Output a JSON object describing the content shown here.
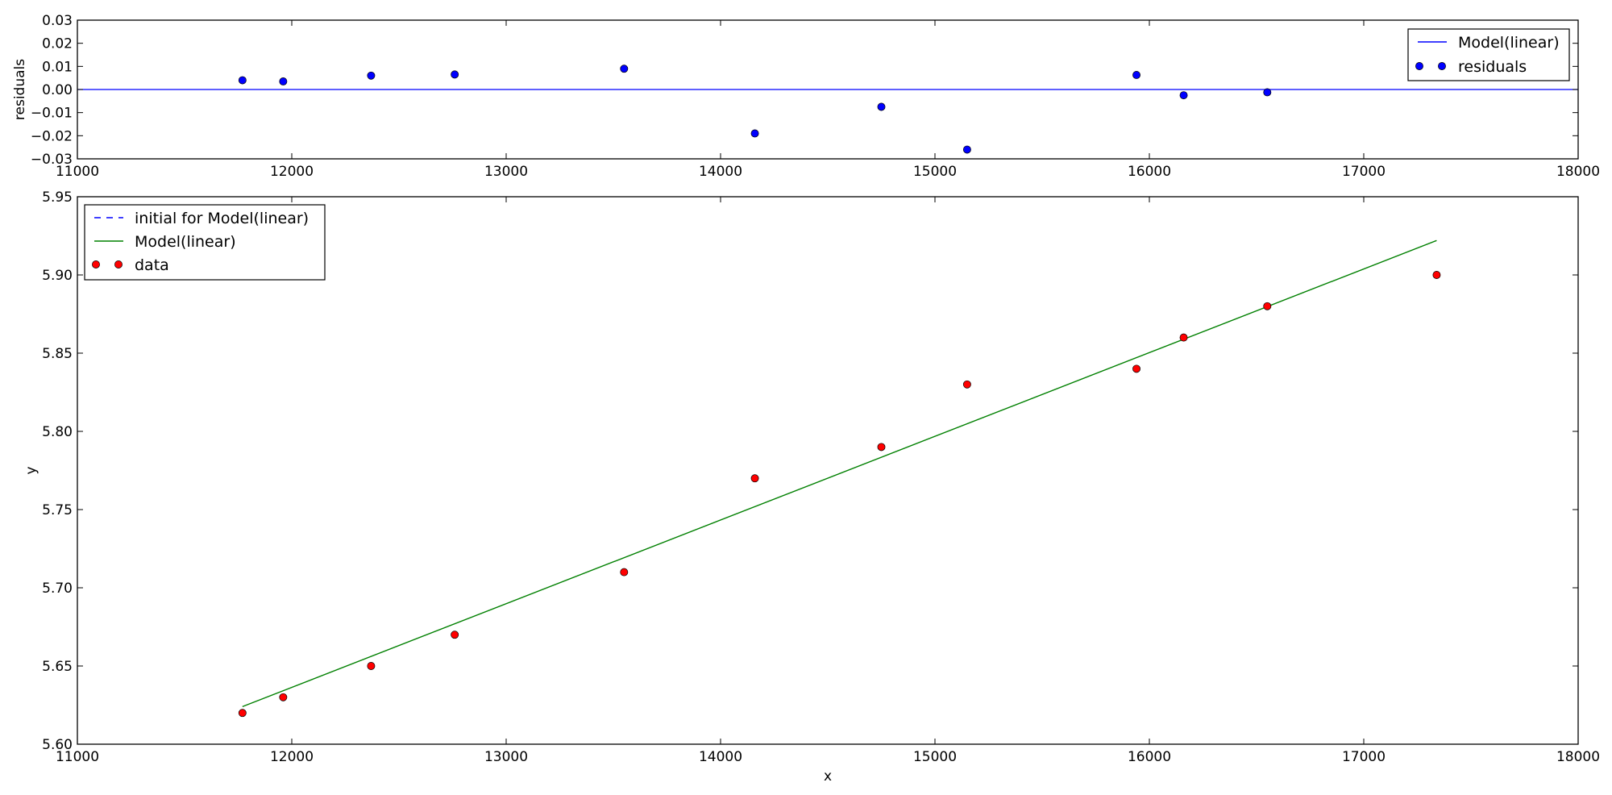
{
  "chart_data": [
    {
      "id": "residuals",
      "type": "scatter",
      "title": "",
      "xlabel": "",
      "ylabel": "residuals",
      "xlim": [
        11000,
        18000
      ],
      "ylim": [
        -0.03,
        0.03
      ],
      "xticks": [
        11000,
        12000,
        13000,
        14000,
        15000,
        16000,
        17000,
        18000
      ],
      "yticks": [
        0.03,
        0.02,
        0.01,
        0.0,
        -0.01,
        -0.02,
        -0.03
      ],
      "xtick_labels": [
        "11000",
        "12000",
        "13000",
        "14000",
        "15000",
        "16000",
        "17000",
        "18000"
      ],
      "ytick_labels": [
        "0.03",
        "0.02",
        "0.01",
        "0.00",
        "−0.01",
        "−0.02",
        "−0.03"
      ],
      "grid": false,
      "legend": {
        "placement": "top-right",
        "entries": [
          {
            "label": "Model(linear)",
            "style": "line",
            "color": "#0000ff"
          },
          {
            "label": "residuals",
            "style": "marker",
            "color": "#0000ff"
          }
        ]
      },
      "series": [
        {
          "name": "Model(linear)",
          "style": "hline",
          "color": "#0000ff",
          "y": 0.0
        },
        {
          "name": "residuals",
          "style": "marker",
          "color": "#0000ff",
          "x": [
            11770,
            11960,
            12370,
            12760,
            13550,
            14160,
            14750,
            15150,
            15940,
            16160,
            16550
          ],
          "y": [
            0.004,
            0.0035,
            0.006,
            0.0065,
            0.009,
            -0.019,
            -0.0075,
            -0.026,
            0.0063,
            -0.0025,
            -0.0012
          ]
        }
      ]
    },
    {
      "id": "main",
      "type": "scatter",
      "title": "",
      "xlabel": "x",
      "ylabel": "y",
      "xlim": [
        11000,
        18000
      ],
      "ylim": [
        5.6,
        5.95
      ],
      "xticks": [
        11000,
        12000,
        13000,
        14000,
        15000,
        16000,
        17000,
        18000
      ],
      "yticks": [
        5.95,
        5.9,
        5.85,
        5.8,
        5.75,
        5.7,
        5.65,
        5.6
      ],
      "xtick_labels": [
        "11000",
        "12000",
        "13000",
        "14000",
        "15000",
        "16000",
        "17000",
        "18000"
      ],
      "ytick_labels": [
        "5.95",
        "5.90",
        "5.85",
        "5.80",
        "5.75",
        "5.70",
        "5.65",
        "5.60"
      ],
      "grid": false,
      "legend": {
        "placement": "top-left",
        "entries": [
          {
            "label": "initial for Model(linear)",
            "style": "dashed",
            "color": "#0000ff"
          },
          {
            "label": "Model(linear)",
            "style": "line",
            "color": "#008000"
          },
          {
            "label": "data",
            "style": "marker",
            "color": "#ff0000"
          }
        ]
      },
      "series": [
        {
          "name": "Model(linear)",
          "style": "line",
          "color": "#008000",
          "x": [
            11770,
            17340
          ],
          "y": [
            5.624,
            5.922
          ]
        },
        {
          "name": "data",
          "style": "marker",
          "color": "#ff0000",
          "x": [
            11770,
            11960,
            12370,
            12760,
            13550,
            14160,
            14750,
            15150,
            15940,
            16160,
            16550,
            17340
          ],
          "y": [
            5.62,
            5.63,
            5.65,
            5.67,
            5.71,
            5.77,
            5.79,
            5.83,
            5.84,
            5.86,
            5.88,
            5.9
          ]
        }
      ]
    }
  ]
}
